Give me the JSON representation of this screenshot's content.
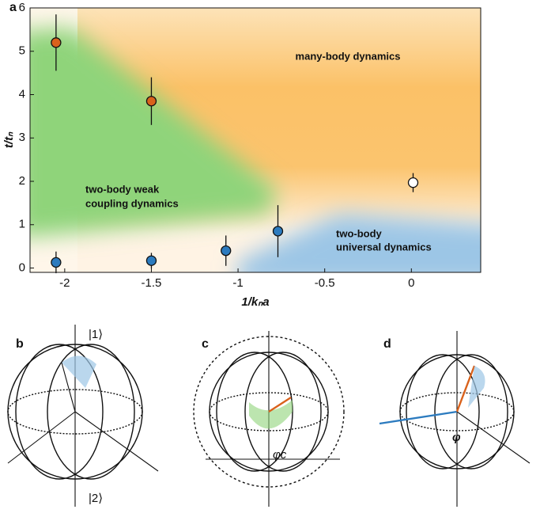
{
  "chart_data": {
    "type": "scatter",
    "panel": "a",
    "xlabel": "1/kₙa",
    "ylabel": "t/tₙ",
    "x": [
      -2.05,
      -1.5,
      -2.05,
      -1.5,
      -1.07,
      -0.77,
      0.01
    ],
    "values": [
      5.2,
      3.85,
      0.13,
      0.17,
      0.4,
      0.85,
      1.97
    ],
    "errors": [
      0.65,
      0.55,
      0.25,
      0.18,
      0.35,
      0.6,
      0.22
    ],
    "colors": [
      "#d9621c",
      "#d9621c",
      "#2c7bbf",
      "#2c7bbf",
      "#2c7bbf",
      "#2c7bbf",
      "#ffffff"
    ],
    "xlim": [
      -2.2,
      0.4
    ],
    "ylim": [
      -0.1,
      6
    ],
    "xticks": [
      -2,
      -1.5,
      -1,
      -0.5,
      0
    ],
    "yticks": [
      0,
      1,
      2,
      3,
      4,
      5,
      6
    ],
    "annotations": [
      [
        "many-body dynamics"
      ],
      [
        "two-body weak",
        "coupling dynamics"
      ],
      [
        "two-body",
        "universal dynamics"
      ]
    ]
  },
  "diagrams": {
    "b": {
      "label": "b",
      "top": "|1⟩",
      "bottom": "|2⟩"
    },
    "c": {
      "label": "c",
      "angle": "φc"
    },
    "d": {
      "label": "d",
      "angle": "φ"
    }
  }
}
